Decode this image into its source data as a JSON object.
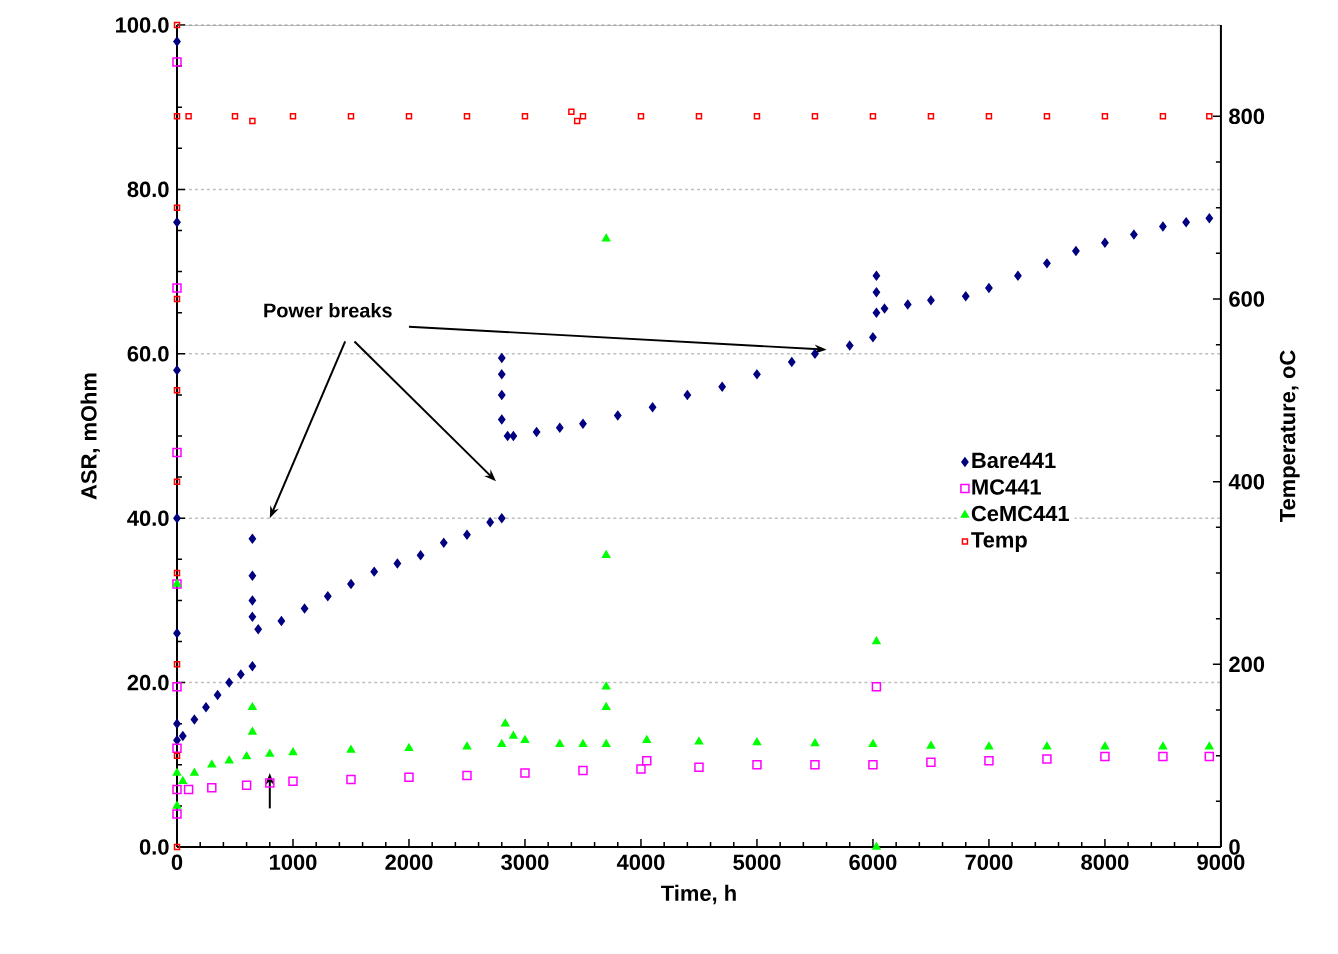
{
  "chart_data": {
    "type": "scatter",
    "xlabel": "Time, h",
    "ylabel": "ASR, mOhm",
    "y2label": "Temperature, oC",
    "annotations": [
      "Power breaks"
    ],
    "xlim": [
      0,
      9000
    ],
    "xticks": [
      0,
      1000,
      2000,
      3000,
      4000,
      5000,
      6000,
      7000,
      8000,
      9000
    ],
    "ylim": [
      0,
      100
    ],
    "yticks": [
      {
        "value": 0,
        "label": "0.0"
      },
      {
        "value": 20,
        "label": "20.0"
      },
      {
        "value": 40,
        "label": "40.0"
      },
      {
        "value": 60,
        "label": "60.0"
      },
      {
        "value": 80,
        "label": "80.0"
      },
      {
        "value": 100,
        "label": "100.0"
      }
    ],
    "y2lim": [
      0,
      900
    ],
    "y2ticks": [
      0,
      200,
      400,
      600,
      800
    ],
    "grid": "y",
    "legend": "right",
    "series": [
      {
        "name": "Bare441",
        "color": "#000080",
        "marker": "diamond",
        "x": [
          0,
          0,
          0,
          0,
          0,
          0,
          0,
          50,
          150,
          250,
          350,
          450,
          550,
          650,
          650,
          650,
          650,
          650,
          700,
          900,
          1100,
          1300,
          1500,
          1700,
          1900,
          2100,
          2300,
          2500,
          2700,
          2800,
          2800,
          2800,
          2800,
          2800,
          2850,
          2900,
          3100,
          3300,
          3500,
          3800,
          4100,
          4400,
          4700,
          5000,
          5300,
          5500,
          5800,
          6000,
          6030,
          6030,
          6030,
          6100,
          6300,
          6500,
          6800,
          7000,
          7250,
          7500,
          7750,
          8000,
          8250,
          8500,
          8700,
          8900
        ],
        "values": [
          98,
          76,
          58,
          40,
          26,
          15,
          13,
          13.5,
          15.5,
          17,
          18.5,
          20,
          21,
          22,
          37.5,
          33,
          30,
          28,
          26.5,
          27.5,
          29,
          30.5,
          32,
          33.5,
          34.5,
          35.5,
          37,
          38,
          39.5,
          40,
          59.5,
          57.5,
          55,
          52,
          50,
          50,
          50.5,
          51,
          51.5,
          52.5,
          53.5,
          55,
          56,
          57.5,
          59,
          60,
          61,
          62,
          69.5,
          67.5,
          65,
          65.5,
          66,
          66.5,
          67,
          68,
          69.5,
          71,
          72.5,
          73.5,
          74.5,
          75.5,
          76,
          76.5
        ]
      },
      {
        "name": "MC441",
        "color": "#ff00ff",
        "marker": "square",
        "x": [
          0,
          0,
          0,
          0,
          0,
          0,
          0,
          0,
          100,
          300,
          600,
          800,
          1000,
          1500,
          2000,
          2500,
          3000,
          3500,
          4000,
          4050,
          4500,
          5000,
          5500,
          6000,
          6030,
          6500,
          7000,
          7500,
          8000,
          8500,
          8900
        ],
        "values": [
          95.5,
          68,
          48,
          32,
          19.5,
          12,
          7,
          4,
          7,
          7.2,
          7.5,
          7.8,
          8,
          8.2,
          8.5,
          8.7,
          9,
          9.3,
          9.5,
          10.5,
          9.7,
          10,
          10,
          10,
          19.5,
          10.3,
          10.5,
          10.7,
          11,
          11,
          11
        ]
      },
      {
        "name": "CeMC441",
        "color": "#00ff00",
        "marker": "triangle",
        "x": [
          0,
          0,
          0,
          50,
          150,
          300,
          450,
          600,
          650,
          650,
          800,
          1000,
          1500,
          2000,
          2500,
          2800,
          2830,
          2900,
          3000,
          3300,
          3500,
          3700,
          3700,
          3700,
          3700,
          3700,
          4050,
          4500,
          5000,
          5500,
          6000,
          6030,
          6030,
          6500,
          7000,
          7500,
          8000,
          8500,
          8900
        ],
        "values": [
          32,
          9,
          5,
          8,
          9,
          10,
          10.5,
          11,
          17,
          14,
          11.3,
          11.5,
          11.8,
          12,
          12.2,
          12.5,
          15,
          13.5,
          13,
          12.5,
          12.5,
          74,
          35.5,
          19.5,
          17,
          12.5,
          13,
          12.8,
          12.7,
          12.6,
          12.5,
          25,
          0,
          12.3,
          12.2,
          12.2,
          12.2,
          12.2,
          12.2
        ]
      },
      {
        "name": "Temp",
        "color": "#ff0000",
        "marker": "square",
        "axis": "y2",
        "x": [
          0,
          0,
          0,
          0,
          0,
          0,
          0,
          0,
          0,
          0,
          100,
          500,
          650,
          1000,
          1500,
          2000,
          2500,
          3000,
          3400,
          3450,
          3500,
          4000,
          4500,
          5000,
          5500,
          6000,
          6500,
          7000,
          7500,
          8000,
          8500,
          8900
        ],
        "values": [
          0,
          100,
          200,
          300,
          400,
          500,
          600,
          700,
          800,
          900,
          800,
          800,
          795,
          800,
          800,
          800,
          800,
          800,
          805,
          795,
          800,
          800,
          800,
          800,
          800,
          800,
          800,
          800,
          800,
          800,
          800,
          800
        ]
      }
    ]
  }
}
